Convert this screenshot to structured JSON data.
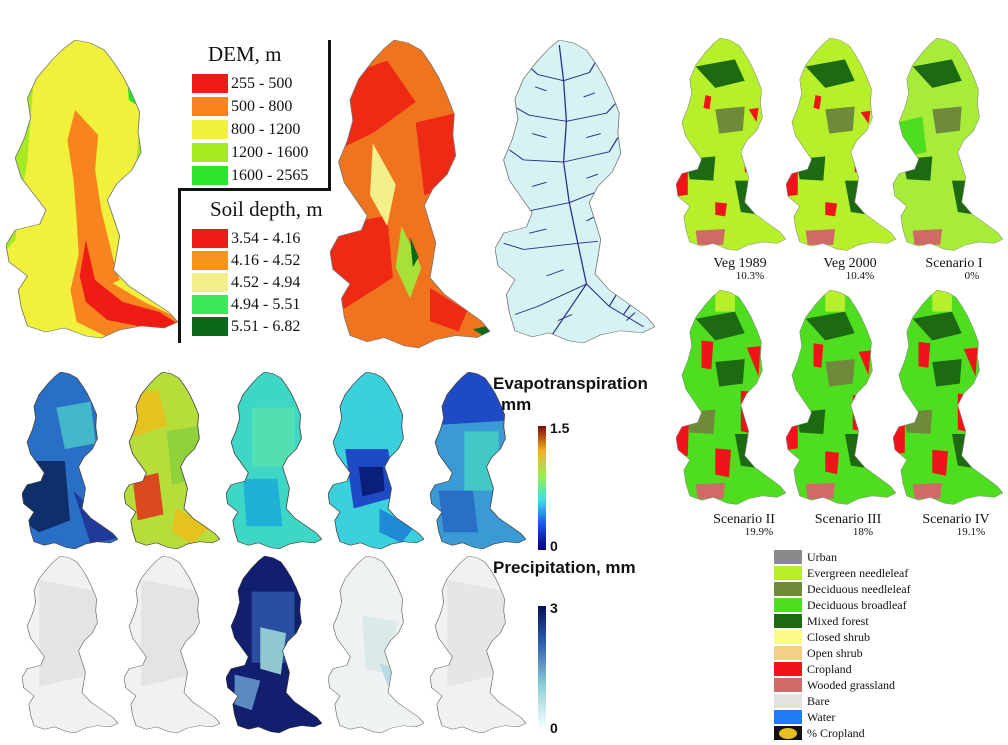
{
  "dem_legend": {
    "title": "DEM, m",
    "items": [
      {
        "label": "255 - 500",
        "color": "#ee1c14"
      },
      {
        "label": "500 - 800",
        "color": "#f7841f"
      },
      {
        "label": "800 - 1200",
        "color": "#f1f03a"
      },
      {
        "label": "1200 - 1600",
        "color": "#a6ea22"
      },
      {
        "label": "1600 - 2565",
        "color": "#2ee32a"
      }
    ]
  },
  "soil_legend": {
    "title": "Soil depth, m",
    "items": [
      {
        "label": "3.54 - 4.16",
        "color": "#ee1c14"
      },
      {
        "label": "4.16 - 4.52",
        "color": "#f7941f"
      },
      {
        "label": "4.52 - 4.94",
        "color": "#f3ef8a"
      },
      {
        "label": "4.94 - 5.51",
        "color": "#3fe85a"
      },
      {
        "label": "5.51 - 6.82",
        "color": "#0a6a1a"
      }
    ]
  },
  "et_scale": {
    "title_line1": "Evapotranspiration",
    "title_line2": "mm",
    "max": "1.5",
    "min": "0"
  },
  "precip_scale": {
    "title": "Precipitation, mm",
    "max": "3",
    "min": "0"
  },
  "scenarios": [
    {
      "title": "Veg 1989",
      "pct": "10.3%"
    },
    {
      "title": "Veg 2000",
      "pct": "10.4%"
    },
    {
      "title": "Scenario I",
      "pct": "0%"
    },
    {
      "title": "Scenario II",
      "pct": "19.9%"
    },
    {
      "title": "Scenario III",
      "pct": "18%"
    },
    {
      "title": "Scenario IV",
      "pct": "19.1%"
    }
  ],
  "landcover_legend": [
    {
      "label": "Urban",
      "color": "#8a8a8a"
    },
    {
      "label": "Evergreen needleleaf",
      "color": "#b6f02a"
    },
    {
      "label": "Deciduous needleleaf",
      "color": "#6f8a3a"
    },
    {
      "label": "Deciduous broadleaf",
      "color": "#4fdd1f"
    },
    {
      "label": "Mixed forest",
      "color": "#1e6a12"
    },
    {
      "label": "Closed shrub",
      "color": "#fbf98a"
    },
    {
      "label": "Open shrub",
      "color": "#f3cf88"
    },
    {
      "label": "Cropland",
      "color": "#f0141a"
    },
    {
      "label": "Wooded grassland",
      "color": "#cf6a66"
    },
    {
      "label": "Bare",
      "color": "#e2e2e2"
    },
    {
      "label": "Water",
      "color": "#1e7bf0"
    },
    {
      "label": "% Cropland",
      "color": "#e6c020"
    }
  ]
}
